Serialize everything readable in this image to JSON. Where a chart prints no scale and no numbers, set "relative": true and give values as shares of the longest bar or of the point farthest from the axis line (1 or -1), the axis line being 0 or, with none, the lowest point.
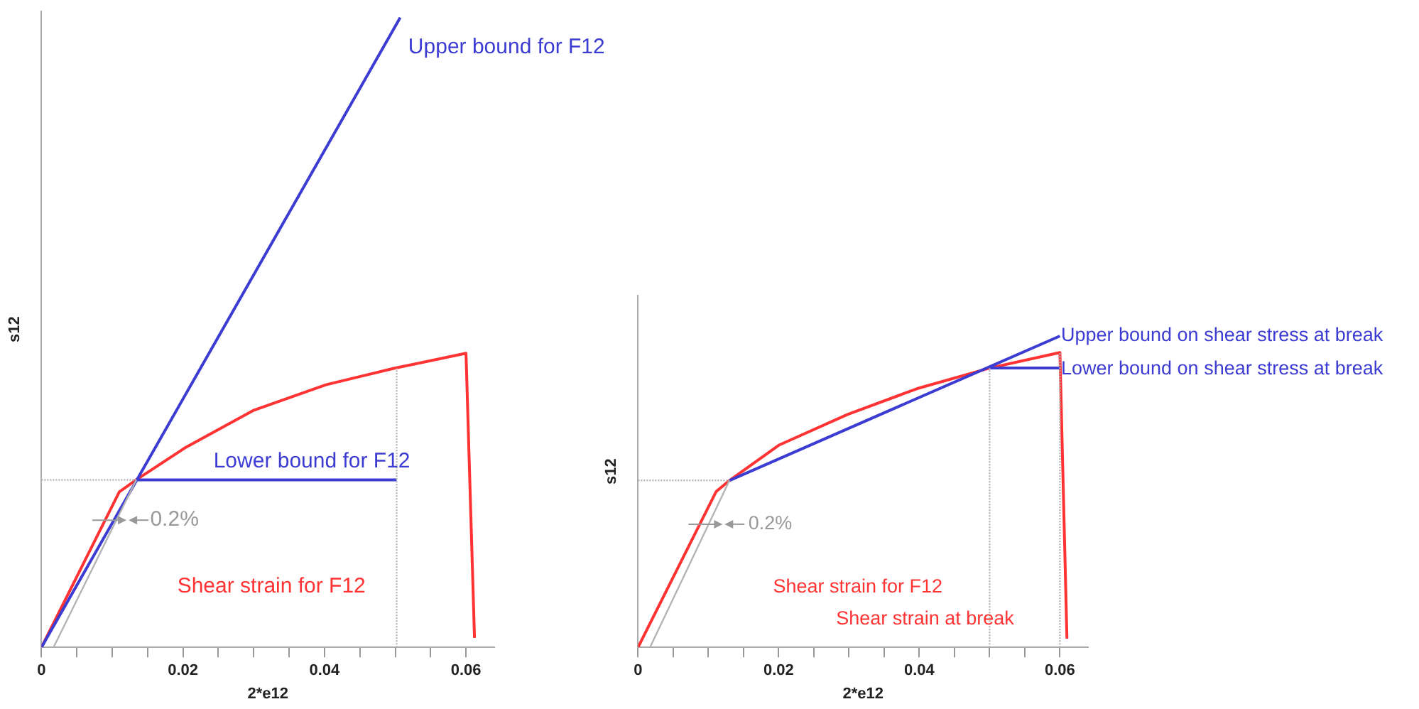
{
  "chart_data": [
    {
      "type": "line",
      "relative": true,
      "xlabel": "2*e12",
      "ylabel": "s12",
      "xlim": [
        0,
        0.064
      ],
      "xticks": [
        0,
        {
          "value": 0.005,
          "label": null
        },
        {
          "value": 0.01,
          "label": null
        },
        {
          "value": 0.015,
          "label": null
        },
        0.02,
        {
          "value": 0.025,
          "label": null
        },
        {
          "value": 0.03,
          "label": null
        },
        {
          "value": 0.035,
          "label": null
        },
        0.04,
        {
          "value": 0.045,
          "label": null
        },
        {
          "value": 0.05,
          "label": null
        },
        {
          "value": 0.055,
          "label": null
        },
        0.06
      ],
      "series": [
        {
          "name": "Upper bound for F12",
          "color": "#3c3cd2",
          "line_style": "solid",
          "x": [
            0,
            0.0507
          ],
          "values": [
            0,
            1
          ]
        },
        {
          "name": "Lower bound for F12",
          "color": "#3c3cd2",
          "line_style": "solid",
          "x": [
            0.0134,
            0.0502
          ],
          "values": [
            0.266,
            0.266
          ]
        },
        {
          "name": "Shear strain for F12",
          "color": "#ff3333",
          "line_style": "solid",
          "x": [
            0,
            0.011,
            0.0134,
            0.0203,
            0.0299,
            0.0402,
            0.0498,
            0.06,
            0.0612
          ],
          "values": [
            0,
            0.247,
            0.266,
            0.317,
            0.376,
            0.417,
            0.443,
            0.467,
            0.015
          ]
        },
        {
          "color": "#b4b4b4",
          "line_style": "solid",
          "x": [
            0.0017,
            0.0134
          ],
          "values": [
            0,
            0.266
          ]
        },
        {
          "color": "#b4b4b4",
          "line_style": "dotted",
          "x": [
            0,
            0.0134
          ],
          "values": [
            0.266,
            0.266
          ]
        },
        {
          "color": "#b4b4b4",
          "line_style": "dotted",
          "x": [
            0.0502,
            0.0502
          ],
          "values": [
            0,
            0.443
          ]
        }
      ],
      "annotations": [
        "0.2%"
      ]
    },
    {
      "type": "line",
      "relative": true,
      "xlabel": "2*e12",
      "ylabel": "s12",
      "xlim": [
        0,
        0.064
      ],
      "xticks": [
        0,
        {
          "value": 0.005,
          "label": null
        },
        {
          "value": 0.01,
          "label": null
        },
        {
          "value": 0.015,
          "label": null
        },
        0.02,
        {
          "value": 0.025,
          "label": null
        },
        {
          "value": 0.03,
          "label": null
        },
        {
          "value": 0.035,
          "label": null
        },
        0.04,
        {
          "value": 0.045,
          "label": null
        },
        {
          "value": 0.05,
          "label": null
        },
        {
          "value": 0.055,
          "label": null
        },
        0.06
      ],
      "series": [
        {
          "name": "Upper bound on shear stress at break",
          "color": "#3c3cd2",
          "line_style": "solid",
          "x": [
            0.013,
            0.06
          ],
          "values": [
            0.536,
            1
          ]
        },
        {
          "name": "Lower bound on shear stress at break",
          "color": "#3c3cd2",
          "line_style": "solid",
          "x": [
            0.05,
            0.06
          ],
          "values": [
            0.897,
            0.897
          ]
        },
        {
          "name": "Shear strain for F12",
          "color": "#ff3333",
          "line_style": "solid",
          "x": [
            0,
            0.0111,
            0.013,
            0.02,
            0.0298,
            0.0397,
            0.05,
            0.06,
            0.061
          ],
          "values": [
            0,
            0.5,
            0.536,
            0.649,
            0.748,
            0.831,
            0.897,
            0.947,
            0.028
          ]
        },
        {
          "color": "#b4b4b4",
          "line_style": "solid",
          "x": [
            0.0017,
            0.013
          ],
          "values": [
            0,
            0.536
          ]
        },
        {
          "color": "#b4b4b4",
          "line_style": "dotted",
          "x": [
            0,
            0.013
          ],
          "values": [
            0.536,
            0.536
          ]
        },
        {
          "color": "#b4b4b4",
          "line_style": "dotted",
          "x": [
            0.05,
            0.05
          ],
          "values": [
            0,
            0.897
          ]
        },
        {
          "color": "#b4b4b4",
          "line_style": "dotted",
          "x": [
            0.06,
            0.06
          ],
          "values": [
            0,
            0.947
          ]
        }
      ],
      "annotations": [
        "0.2%",
        "Shear strain at break"
      ]
    }
  ]
}
